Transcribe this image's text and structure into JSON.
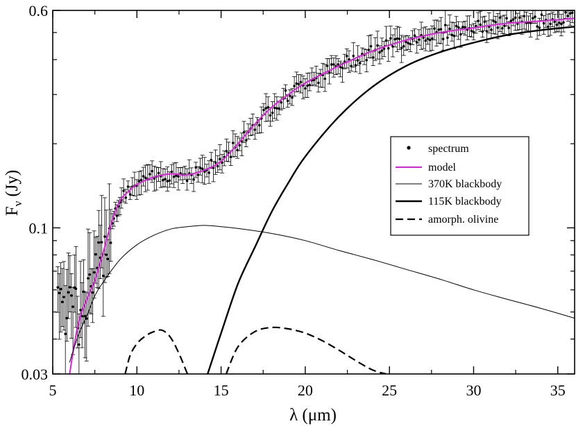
{
  "chart_data": {
    "type": "line",
    "xlabel": "λ (μm)",
    "ylabel_main": "F",
    "ylabel_sub": "ν",
    "ylabel_unit": "(Jy)",
    "xlim": [
      5,
      36
    ],
    "ylim": [
      0.03,
      0.6
    ],
    "yscale": "log",
    "xticks": [
      5,
      10,
      15,
      20,
      25,
      30,
      35
    ],
    "yticks": [
      0.03,
      0.1,
      0.6
    ],
    "ytick_labels": [
      "0.03",
      "0.1",
      "0.6"
    ],
    "legend_position": "right",
    "legend": [
      "spectrum",
      "model",
      "370K blackbody",
      "115K blackbody",
      "amorph. olivine"
    ],
    "series": [
      {
        "name": "model",
        "color": "#e020e0",
        "style": "solid",
        "x": [
          6,
          6.5,
          7,
          7.5,
          8,
          8.5,
          9,
          9.5,
          10,
          11,
          12,
          13,
          14,
          15,
          16,
          17,
          18,
          19,
          20,
          22,
          24,
          26,
          28,
          30,
          32,
          34,
          36
        ],
        "y": [
          0.03,
          0.045,
          0.055,
          0.065,
          0.082,
          0.105,
          0.125,
          0.135,
          0.143,
          0.152,
          0.156,
          0.155,
          0.161,
          0.173,
          0.2,
          0.235,
          0.27,
          0.3,
          0.33,
          0.38,
          0.43,
          0.47,
          0.5,
          0.52,
          0.54,
          0.55,
          0.562
        ]
      },
      {
        "name": "370K blackbody",
        "color": "#000000",
        "style": "thin",
        "x": [
          6,
          6.5,
          7,
          7.5,
          8,
          9,
          10,
          11,
          12,
          13,
          14,
          15,
          16,
          18,
          20,
          22,
          24,
          26,
          28,
          30,
          32,
          34,
          36
        ],
        "y": [
          0.033,
          0.041,
          0.048,
          0.057,
          0.064,
          0.077,
          0.087,
          0.094,
          0.099,
          0.101,
          0.102,
          0.101,
          0.0995,
          0.0955,
          0.09,
          0.083,
          0.077,
          0.071,
          0.0655,
          0.06,
          0.0555,
          0.0515,
          0.0475
        ]
      },
      {
        "name": "115K blackbody",
        "color": "#000000",
        "style": "thick",
        "x": [
          14.2,
          15,
          16,
          17,
          18,
          19,
          20,
          22,
          24,
          26,
          28,
          30,
          32,
          34,
          36
        ],
        "y": [
          0.03,
          0.042,
          0.063,
          0.085,
          0.114,
          0.145,
          0.18,
          0.25,
          0.32,
          0.38,
          0.425,
          0.46,
          0.49,
          0.51,
          0.525
        ]
      },
      {
        "name": "amorph. olivine",
        "color": "#000000",
        "style": "dashed",
        "segments": [
          {
            "x": [
              9.3,
              9.6,
              10,
              10.5,
              11,
              11.5,
              12,
              12.5,
              13
            ],
            "y": [
              0.03,
              0.035,
              0.0385,
              0.041,
              0.0425,
              0.043,
              0.0405,
              0.0355,
              0.03
            ]
          },
          {
            "x": [
              15.3,
              16,
              17,
              18,
              19,
              20,
              21,
              22,
              23,
              24,
              24.8
            ],
            "y": [
              0.03,
              0.0375,
              0.0425,
              0.044,
              0.0435,
              0.042,
              0.0395,
              0.0365,
              0.0335,
              0.031,
              0.03
            ]
          }
        ]
      }
    ]
  }
}
